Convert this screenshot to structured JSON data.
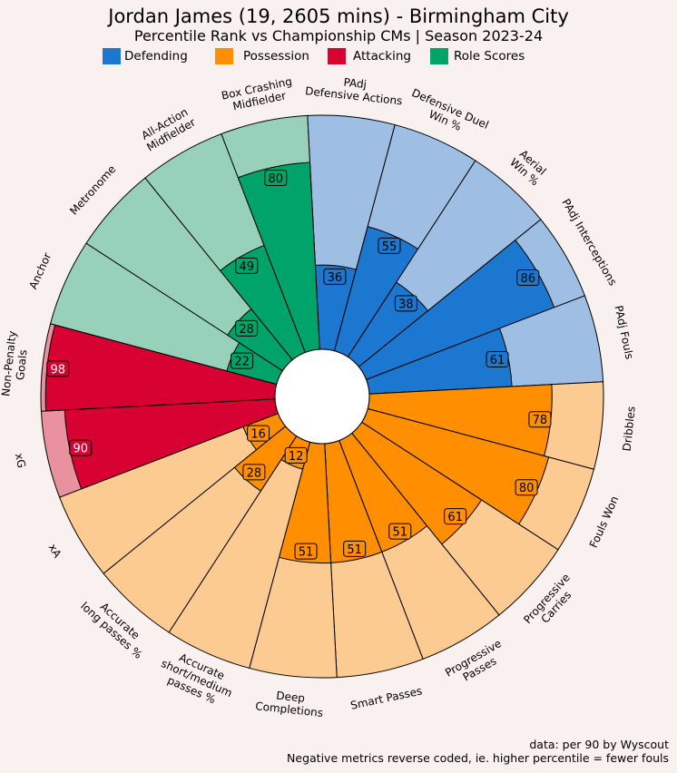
{
  "title": "Jordan James (19, 2605 mins) - Birmingham City",
  "subtitle": "Percentile Rank vs Championship CMs | Season 2023-24",
  "legend": [
    {
      "label": "Defending",
      "color": "#1b77d0"
    },
    {
      "label": "Possession",
      "color": "#ff8f00"
    },
    {
      "label": "Attacking",
      "color": "#d70232"
    },
    {
      "label": "Role Scores",
      "color": "#00a36a"
    }
  ],
  "footer": {
    "line1": "data: per 90 by Wyscout",
    "line2": "Negative metrics reverse coded, ie. higher percentile = fewer fouls"
  },
  "chart_data": {
    "type": "pizza",
    "range": [
      0,
      100
    ],
    "categories": [
      {
        "name": "Defending",
        "color": "#1b77d0",
        "light": "#9ebee3"
      },
      {
        "name": "Possession",
        "color": "#ff8f00",
        "light": "#fccb92"
      },
      {
        "name": "Attacking",
        "color": "#d70232",
        "light": "#ea919f"
      },
      {
        "name": "Role Scores",
        "color": "#00a36a",
        "light": "#98d1b9"
      }
    ],
    "metrics": [
      {
        "label": "PAdj\nDefensive Actions",
        "value": 36,
        "group": "Defending"
      },
      {
        "label": "Defensive Duel\nWin %",
        "value": 55,
        "group": "Defending"
      },
      {
        "label": "Aerial\nWin %",
        "value": 38,
        "group": "Defending"
      },
      {
        "label": "PAdj Interceptions",
        "value": 86,
        "group": "Defending"
      },
      {
        "label": "PAdj Fouls",
        "value": 61,
        "group": "Defending"
      },
      {
        "label": "Dribbles",
        "value": 78,
        "group": "Possession"
      },
      {
        "label": "Fouls Won",
        "value": 80,
        "group": "Possession"
      },
      {
        "label": "Progressive\nCarries",
        "value": 61,
        "group": "Possession"
      },
      {
        "label": "Progressive\nPasses",
        "value": 51,
        "group": "Possession"
      },
      {
        "label": "Smart Passes",
        "value": 51,
        "group": "Possession"
      },
      {
        "label": "Deep\nCompletions",
        "value": 51,
        "group": "Possession"
      },
      {
        "label": "Accurate\nshort/medium\npasses %",
        "value": 12,
        "group": "Possession"
      },
      {
        "label": "Accurate\nlong passes %",
        "value": 28,
        "group": "Possession"
      },
      {
        "label": "xA",
        "value": 16,
        "group": "Possession"
      },
      {
        "label": "xG",
        "value": 90,
        "group": "Attacking"
      },
      {
        "label": "Non-Penalty\nGoals",
        "value": 98,
        "group": "Attacking"
      },
      {
        "label": "Anchor",
        "value": 22,
        "group": "Role Scores"
      },
      {
        "label": "Metronome",
        "value": 28,
        "group": "Role Scores"
      },
      {
        "label": "All-Action\nMidfielder",
        "value": 49,
        "group": "Role Scores"
      },
      {
        "label": "Box Crashing\nMidfielder",
        "value": 80,
        "group": "Role Scores"
      }
    ]
  }
}
